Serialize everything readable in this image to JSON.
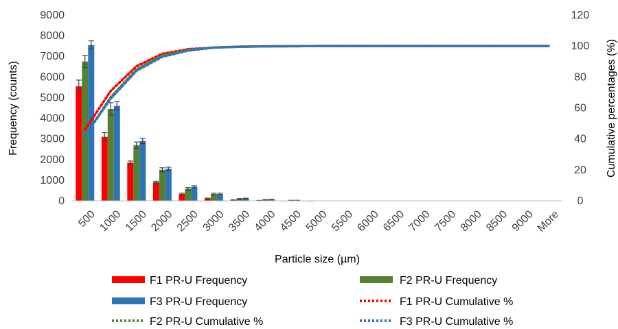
{
  "chart_data": {
    "type": "bar",
    "xlabel": "Particle size (µm)",
    "ylabel": "Frequency (counts)",
    "y2label": "Cumulative percentages (%)",
    "ylim": [
      0,
      9000
    ],
    "y2lim": [
      0,
      120
    ],
    "yticks": [
      "0",
      "1000",
      "2000",
      "3000",
      "4000",
      "5000",
      "6000",
      "7000",
      "8000",
      "9000"
    ],
    "y2ticks": [
      "0",
      "20",
      "40",
      "60",
      "80",
      "100",
      "120"
    ],
    "categories": [
      "500",
      "1000",
      "1500",
      "2000",
      "2500",
      "3000",
      "3500",
      "4000",
      "4500",
      "5000",
      "5500",
      "6000",
      "6500",
      "7000",
      "7500",
      "8000",
      "8500",
      "9000",
      "More"
    ],
    "grid": false,
    "legend_position": "bottom",
    "bar_series": [
      {
        "name": "F1 PR-U Frequency",
        "color": "#ff0000",
        "values": [
          5550,
          3100,
          1850,
          900,
          330,
          110,
          40,
          15,
          5,
          2,
          0,
          0,
          0,
          0,
          0,
          0,
          0,
          0,
          0
        ],
        "errors": [
          300,
          200,
          80,
          50,
          40,
          20,
          10,
          5,
          0,
          0,
          0,
          0,
          0,
          0,
          0,
          0,
          0,
          0,
          0
        ]
      },
      {
        "name": "F2 PR-U Frequency",
        "color": "#548235",
        "values": [
          6750,
          4450,
          2700,
          1500,
          580,
          330,
          90,
          50,
          20,
          10,
          0,
          0,
          0,
          0,
          0,
          0,
          0,
          0,
          0
        ],
        "errors": [
          300,
          300,
          150,
          100,
          60,
          40,
          20,
          10,
          5,
          0,
          0,
          0,
          0,
          0,
          0,
          0,
          0,
          0,
          0
        ]
      },
      {
        "name": "F3 PR-U Frequency",
        "color": "#2e75b6",
        "values": [
          7550,
          4600,
          2900,
          1550,
          680,
          330,
          110,
          60,
          20,
          10,
          0,
          0,
          0,
          0,
          0,
          0,
          0,
          0,
          0
        ],
        "errors": [
          200,
          200,
          130,
          80,
          50,
          40,
          20,
          10,
          5,
          0,
          0,
          0,
          0,
          0,
          0,
          0,
          0,
          0,
          0
        ]
      }
    ],
    "line_series": [
      {
        "name": "F1 PR-U Cumulative %",
        "color": "#ff0000",
        "values": [
          46,
          71,
          87,
          95,
          98,
          99,
          99.6,
          99.8,
          99.9,
          100,
          100,
          100,
          100,
          100,
          100,
          100,
          100,
          100,
          100
        ]
      },
      {
        "name": "F2 PR-U Cumulative %",
        "color": "#548235",
        "values": [
          42,
          67,
          85,
          94,
          97.5,
          99,
          99.6,
          99.8,
          99.9,
          100,
          100,
          100,
          100,
          100,
          100,
          100,
          100,
          100,
          100
        ]
      },
      {
        "name": "F3 PR-U Cumulative %",
        "color": "#2e75b6",
        "values": [
          42,
          66,
          84,
          93,
          97,
          99,
          99.5,
          99.8,
          99.9,
          100,
          100,
          100,
          100,
          100,
          100,
          100,
          100,
          100,
          100
        ]
      }
    ]
  }
}
